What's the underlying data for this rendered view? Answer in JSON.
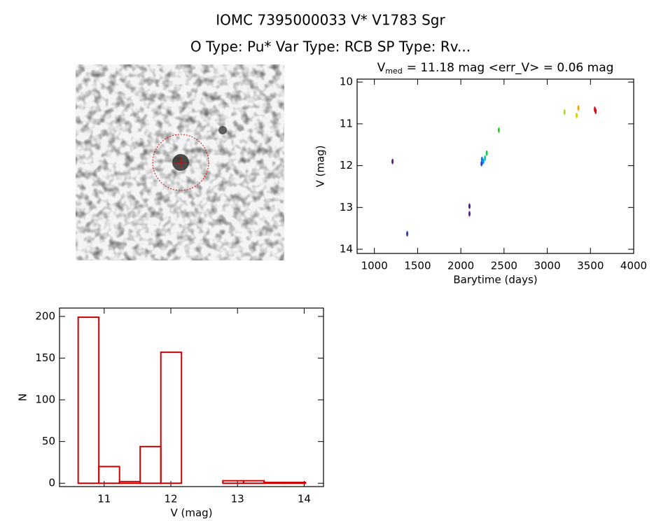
{
  "header": {
    "title": "IOMC 7395000033    V* V1783 Sgr",
    "subtitle": "O Type: Pu*  Var Type: RCB  SP Type: Rv..."
  },
  "chart_data": [
    {
      "type": "scatter",
      "title": {
        "main": "V",
        "subscript": "med",
        "rest": "= 11.18 mag <err_V> = 0.06 mag"
      },
      "x_label": "Barytime (days)",
      "y_label": "V (mag)",
      "x": [
        1210,
        1380,
        2100,
        2100,
        2240,
        2245,
        2260,
        2280,
        2300,
        2440,
        3200,
        3340,
        3360,
        3550,
        3560
      ],
      "values": [
        11.9,
        13.63,
        12.97,
        13.15,
        11.95,
        11.85,
        11.9,
        11.82,
        11.7,
        11.15,
        10.72,
        10.8,
        10.62,
        10.65,
        10.7
      ],
      "colors": [
        "#5a1f8c",
        "#3a3aa8",
        "#40208c",
        "#5a1f8c",
        "#1e40d8",
        "#1070e0",
        "#00a0e0",
        "#00c8b0",
        "#20c840",
        "#20d020",
        "#a0e020",
        "#e0d000",
        "#f0a000",
        "#e02020",
        "#d01010"
      ],
      "xlim": [
        800,
        4000
      ],
      "xticks": [
        1000,
        1500,
        2000,
        2500,
        3000,
        3500,
        4000
      ],
      "ylim": [
        14.1,
        9.93
      ],
      "yticks": [
        10,
        11,
        12,
        13,
        14
      ]
    },
    {
      "type": "histogram",
      "x_label": "V (mag)",
      "y_label": "N",
      "color": "#cc0000",
      "bins": [
        10.61,
        10.92,
        11.23,
        11.54,
        11.85,
        12.16,
        12.47,
        12.78,
        13.09,
        13.4,
        13.71,
        14.02
      ],
      "values": [
        199,
        20,
        2,
        44,
        157,
        0,
        0,
        3,
        3,
        1,
        1
      ],
      "xlim": [
        10.33,
        14.29
      ],
      "xticks": [
        11,
        12,
        13,
        14
      ],
      "ylim": [
        -4,
        210
      ],
      "yticks": [
        0,
        50,
        100,
        150,
        200
      ]
    }
  ]
}
